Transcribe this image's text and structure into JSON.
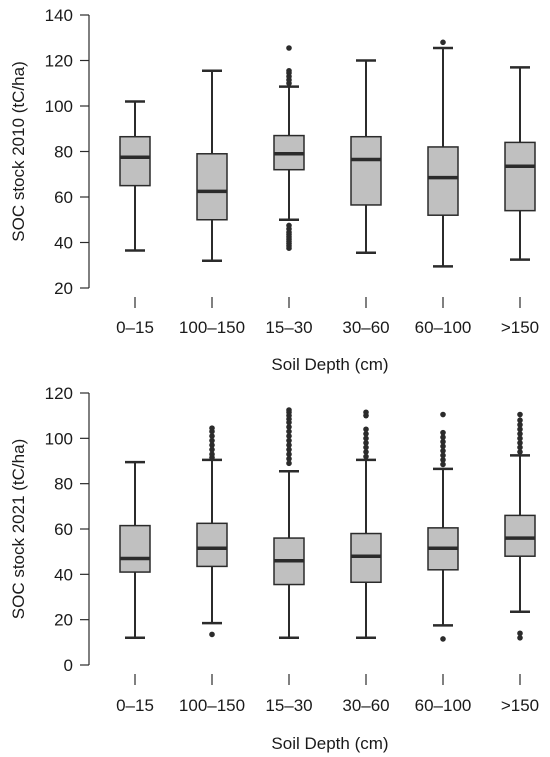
{
  "chart_data": [
    {
      "type": "boxplot",
      "xlabel": "Soil Depth (cm)",
      "ylabel": "SOC stock 2010 (tC/ha)",
      "ylim": [
        20,
        140
      ],
      "yticks": [
        20,
        40,
        60,
        80,
        100,
        120,
        140
      ],
      "grid": false,
      "categories": [
        "0–15",
        "100–150",
        "15–30",
        "30–60",
        "60–100",
        ">150"
      ],
      "boxes": [
        {
          "whisker_low": 36.5,
          "q1": 65,
          "median": 77.5,
          "q3": 86.5,
          "whisker_high": 102,
          "outliers": []
        },
        {
          "whisker_low": 32,
          "q1": 50,
          "median": 62.5,
          "q3": 79,
          "whisker_high": 115.5,
          "outliers": []
        },
        {
          "whisker_low": 50,
          "q1": 72,
          "median": 79,
          "q3": 87,
          "whisker_high": 108.5,
          "outliers": [
            37.5,
            38.5,
            39.5,
            40.5,
            41.5,
            42.5,
            43.5,
            44.5,
            46,
            47.5,
            110,
            111.5,
            113,
            114.5,
            115.5,
            125.5
          ]
        },
        {
          "whisker_low": 35.5,
          "q1": 56.5,
          "median": 76.5,
          "q3": 86.5,
          "whisker_high": 120,
          "outliers": []
        },
        {
          "whisker_low": 29.5,
          "q1": 52,
          "median": 68.5,
          "q3": 82,
          "whisker_high": 125.5,
          "outliers": [
            128
          ]
        },
        {
          "whisker_low": 32.5,
          "q1": 54,
          "median": 73.5,
          "q3": 84,
          "whisker_high": 117,
          "outliers": []
        }
      ]
    },
    {
      "type": "boxplot",
      "xlabel": "Soil Depth (cm)",
      "ylabel": "SOC stock 2021 (tC/ha)",
      "ylim": [
        0,
        120
      ],
      "yticks": [
        0,
        20,
        40,
        60,
        80,
        100,
        120
      ],
      "grid": false,
      "categories": [
        "0–15",
        "100–150",
        "15–30",
        "30–60",
        "60–100",
        ">150"
      ],
      "boxes": [
        {
          "whisker_low": 12,
          "q1": 41,
          "median": 47,
          "q3": 61.5,
          "whisker_high": 89.5,
          "outliers": []
        },
        {
          "whisker_low": 18.5,
          "q1": 43.5,
          "median": 51.5,
          "q3": 62.5,
          "whisker_high": 90.5,
          "outliers": [
            13.5,
            91.5,
            93,
            95,
            97,
            99,
            101,
            103,
            104.5
          ]
        },
        {
          "whisker_low": 12,
          "q1": 35.5,
          "median": 46,
          "q3": 56,
          "whisker_high": 85.5,
          "outliers": [
            89,
            91,
            93,
            95,
            97,
            99,
            101,
            103,
            105,
            107,
            108.5,
            110,
            111.5,
            112.5
          ]
        },
        {
          "whisker_low": 12,
          "q1": 36.5,
          "median": 48,
          "q3": 58,
          "whisker_high": 90.5,
          "outliers": [
            92,
            94,
            96,
            98,
            100,
            102,
            104,
            110,
            111.5
          ]
        },
        {
          "whisker_low": 17.5,
          "q1": 42,
          "median": 51.5,
          "q3": 60.5,
          "whisker_high": 86.5,
          "outliers": [
            11.5,
            88.5,
            90.5,
            92.5,
            94.5,
            96.5,
            98.5,
            100.5,
            102.5,
            110.5
          ]
        },
        {
          "whisker_low": 23.5,
          "q1": 48,
          "median": 56,
          "q3": 66,
          "whisker_high": 92.5,
          "outliers": [
            12,
            14,
            94,
            96,
            98,
            100,
            102,
            104,
            106,
            108,
            110.5
          ]
        }
      ]
    }
  ],
  "colors": {
    "box_fill": "#c0c0c0",
    "stroke": "#2b2b2b",
    "text": "#1a1a1a"
  }
}
